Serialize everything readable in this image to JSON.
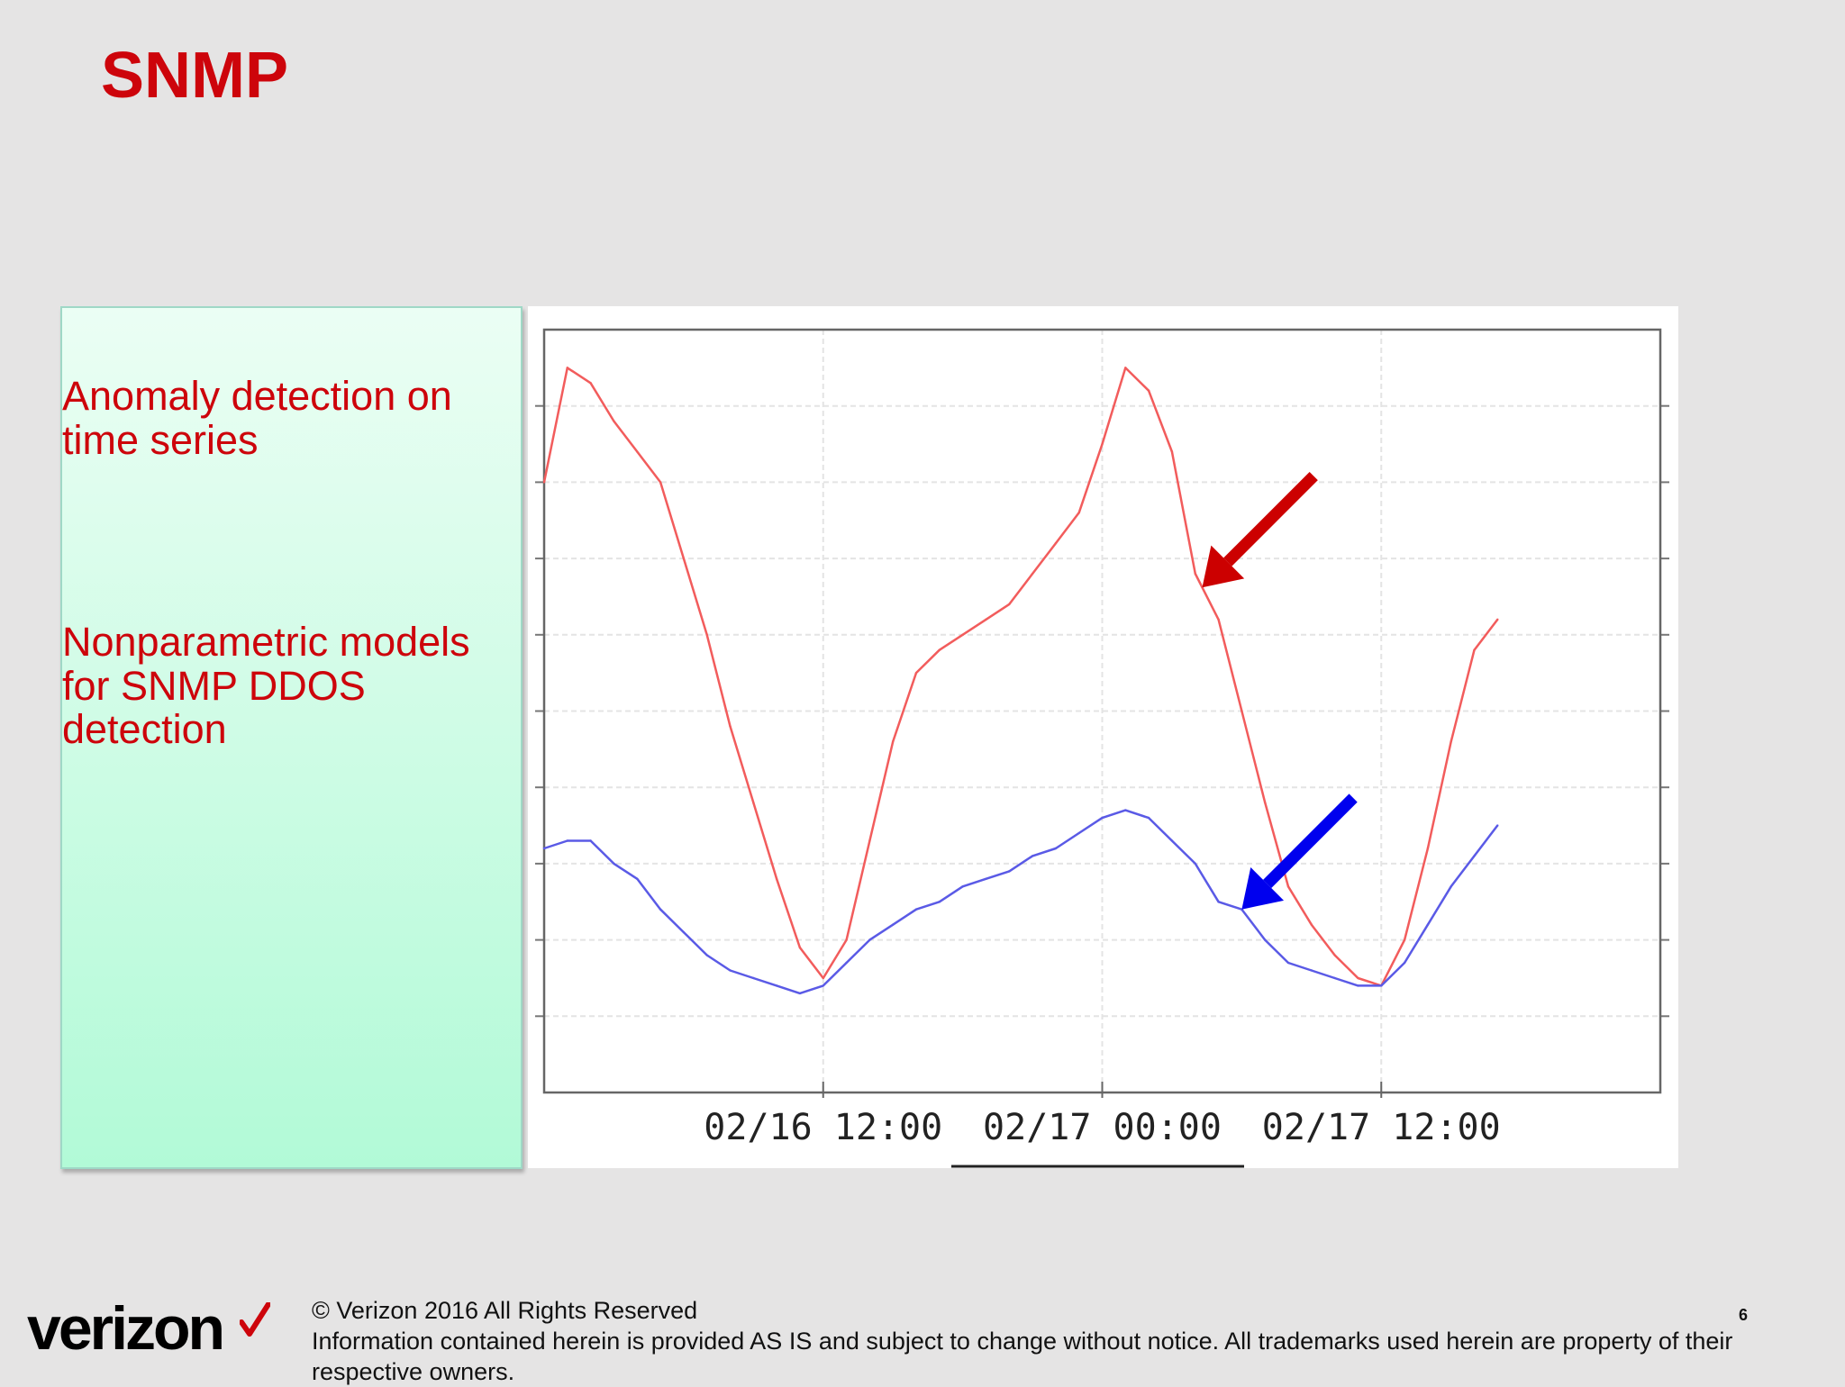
{
  "slide": {
    "title": "SNMP",
    "points": [
      "Anomaly detection on time series",
      "Nonparametric models for SNMP DDOS detection"
    ],
    "page_number": "6"
  },
  "footer": {
    "logo_text": "verizon",
    "logo_mark": "check-mark-icon",
    "copyright": "© Verizon 2016 All Rights Reserved",
    "disclaimer": "Information contained herein is provided AS IS and subject to change without notice.  All trademarks used herein are property of their respective owners."
  },
  "colors": {
    "title": "#cd040b",
    "series_red": "#f25c5c",
    "series_blue": "#5a5ae6",
    "arrow_red": "#cc0000",
    "arrow_blue": "#0000ee"
  },
  "chart_data": {
    "type": "line",
    "x_tick_labels": [
      "02/16 12:00",
      "02/17 00:00",
      "02/17 12:00"
    ],
    "x_tick_times": [
      12,
      24,
      36
    ],
    "x_range_hours": [
      0,
      48
    ],
    "y_range": [
      0,
      1
    ],
    "grid": true,
    "legend": "none",
    "series": [
      {
        "color": "#f25c5c",
        "points": [
          [
            0,
            0.8
          ],
          [
            1,
            0.95
          ],
          [
            2,
            0.93
          ],
          [
            3,
            0.88
          ],
          [
            4,
            0.84
          ],
          [
            5,
            0.8
          ],
          [
            6,
            0.7
          ],
          [
            7,
            0.6
          ],
          [
            8,
            0.48
          ],
          [
            9,
            0.38
          ],
          [
            10,
            0.28
          ],
          [
            11,
            0.19
          ],
          [
            12,
            0.15
          ],
          [
            13,
            0.2
          ],
          [
            14,
            0.33
          ],
          [
            15,
            0.46
          ],
          [
            16,
            0.55
          ],
          [
            17,
            0.58
          ],
          [
            18,
            0.6
          ],
          [
            19,
            0.62
          ],
          [
            20,
            0.64
          ],
          [
            21,
            0.68
          ],
          [
            22,
            0.72
          ],
          [
            23,
            0.76
          ],
          [
            24,
            0.85
          ],
          [
            25,
            0.95
          ],
          [
            26,
            0.92
          ],
          [
            27,
            0.84
          ],
          [
            28,
            0.68
          ],
          [
            29,
            0.62
          ],
          [
            30,
            0.5
          ],
          [
            31,
            0.38
          ],
          [
            32,
            0.27
          ],
          [
            33,
            0.22
          ],
          [
            34,
            0.18
          ],
          [
            35,
            0.15
          ],
          [
            36,
            0.14
          ],
          [
            37,
            0.2
          ],
          [
            38,
            0.32
          ],
          [
            39,
            0.46
          ],
          [
            40,
            0.58
          ],
          [
            41,
            0.62
          ]
        ]
      },
      {
        "color": "#5a5ae6",
        "points": [
          [
            0,
            0.32
          ],
          [
            1,
            0.33
          ],
          [
            2,
            0.33
          ],
          [
            3,
            0.3
          ],
          [
            4,
            0.28
          ],
          [
            5,
            0.24
          ],
          [
            6,
            0.21
          ],
          [
            7,
            0.18
          ],
          [
            8,
            0.16
          ],
          [
            9,
            0.15
          ],
          [
            10,
            0.14
          ],
          [
            11,
            0.13
          ],
          [
            12,
            0.14
          ],
          [
            13,
            0.17
          ],
          [
            14,
            0.2
          ],
          [
            15,
            0.22
          ],
          [
            16,
            0.24
          ],
          [
            17,
            0.25
          ],
          [
            18,
            0.27
          ],
          [
            19,
            0.28
          ],
          [
            20,
            0.29
          ],
          [
            21,
            0.31
          ],
          [
            22,
            0.32
          ],
          [
            23,
            0.34
          ],
          [
            24,
            0.36
          ],
          [
            25,
            0.37
          ],
          [
            26,
            0.36
          ],
          [
            27,
            0.33
          ],
          [
            28,
            0.3
          ],
          [
            29,
            0.25
          ],
          [
            30,
            0.24
          ],
          [
            31,
            0.2
          ],
          [
            32,
            0.17
          ],
          [
            33,
            0.16
          ],
          [
            34,
            0.15
          ],
          [
            35,
            0.14
          ],
          [
            36,
            0.14
          ],
          [
            37,
            0.17
          ],
          [
            38,
            0.22
          ],
          [
            39,
            0.27
          ],
          [
            40,
            0.31
          ],
          [
            41,
            0.35
          ]
        ]
      }
    ],
    "annotations": [
      {
        "color": "#cc0000",
        "points_to_hour": 28.3,
        "series": 0
      },
      {
        "color": "#0000ee",
        "points_to_hour": 30.0,
        "series": 1
      }
    ]
  }
}
